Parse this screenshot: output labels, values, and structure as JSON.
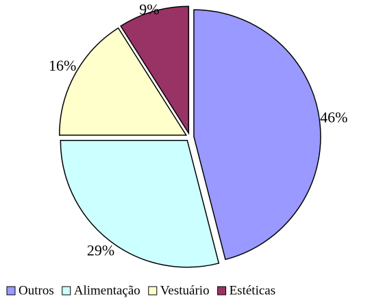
{
  "chart_data": {
    "type": "pie",
    "categories": [
      "Outros",
      "Alimentação",
      "Vestuário",
      "Estéticas"
    ],
    "values": [
      46,
      29,
      16,
      9
    ],
    "value_labels": [
      "46%",
      "29%",
      "16%",
      "9%"
    ],
    "colors": [
      "#9999ff",
      "#ccffff",
      "#ffffcc",
      "#993366"
    ],
    "legend": "bottom"
  }
}
